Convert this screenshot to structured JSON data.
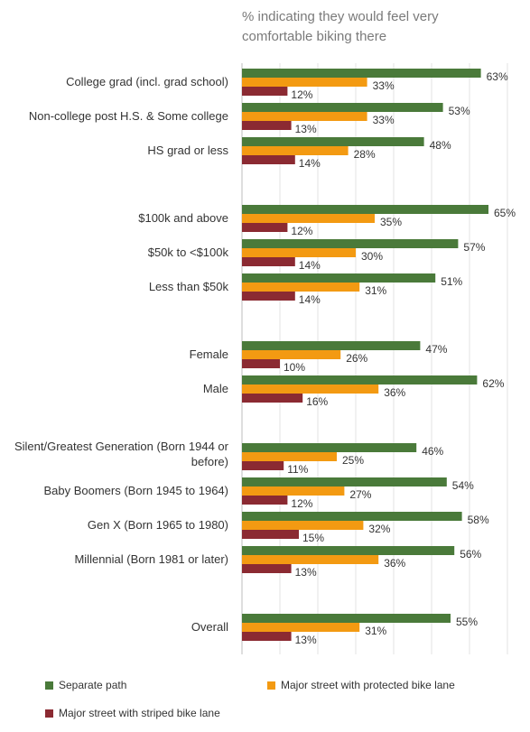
{
  "chart_data": {
    "type": "bar",
    "orientation": "horizontal",
    "title": "% indicating they would feel very comfortable biking there",
    "series": [
      {
        "name": "Separate path",
        "color": "#4a7a3a"
      },
      {
        "name": "Major street with protected bike lane",
        "color": "#f39a12"
      },
      {
        "name": "Major street with striped bike lane",
        "color": "#8b2a32"
      }
    ],
    "groups": [
      {
        "categories": [
          {
            "label": "College grad (incl. grad school)",
            "values": [
              63,
              33,
              12
            ]
          },
          {
            "label": "Non-college post H.S. & Some college",
            "values": [
              53,
              33,
              13
            ]
          },
          {
            "label": "HS grad or less",
            "values": [
              48,
              28,
              14
            ]
          }
        ]
      },
      {
        "categories": [
          {
            "label": "$100k and above",
            "values": [
              65,
              35,
              12
            ]
          },
          {
            "label": "$50k to <$100k",
            "values": [
              57,
              30,
              14
            ]
          },
          {
            "label": "Less than $50k",
            "values": [
              51,
              31,
              14
            ]
          }
        ]
      },
      {
        "categories": [
          {
            "label": "Female",
            "values": [
              47,
              26,
              10
            ]
          },
          {
            "label": "Male",
            "values": [
              62,
              36,
              16
            ]
          }
        ]
      },
      {
        "categories": [
          {
            "label": "Silent/Greatest Generation (Born 1944 or before)",
            "values": [
              46,
              25,
              11
            ]
          },
          {
            "label": "Baby Boomers (Born 1945 to 1964)",
            "values": [
              54,
              27,
              12
            ]
          },
          {
            "label": "Gen X (Born 1965 to 1980)",
            "values": [
              58,
              32,
              15
            ]
          },
          {
            "label": "Millennial (Born 1981 or later)",
            "values": [
              56,
              36,
              13
            ]
          }
        ]
      },
      {
        "categories": [
          {
            "label": "Overall",
            "values": [
              55,
              31,
              13
            ]
          }
        ]
      }
    ],
    "value_suffix": "%",
    "xlim": [
      0,
      70
    ],
    "grid": true,
    "legend": "bottom"
  }
}
